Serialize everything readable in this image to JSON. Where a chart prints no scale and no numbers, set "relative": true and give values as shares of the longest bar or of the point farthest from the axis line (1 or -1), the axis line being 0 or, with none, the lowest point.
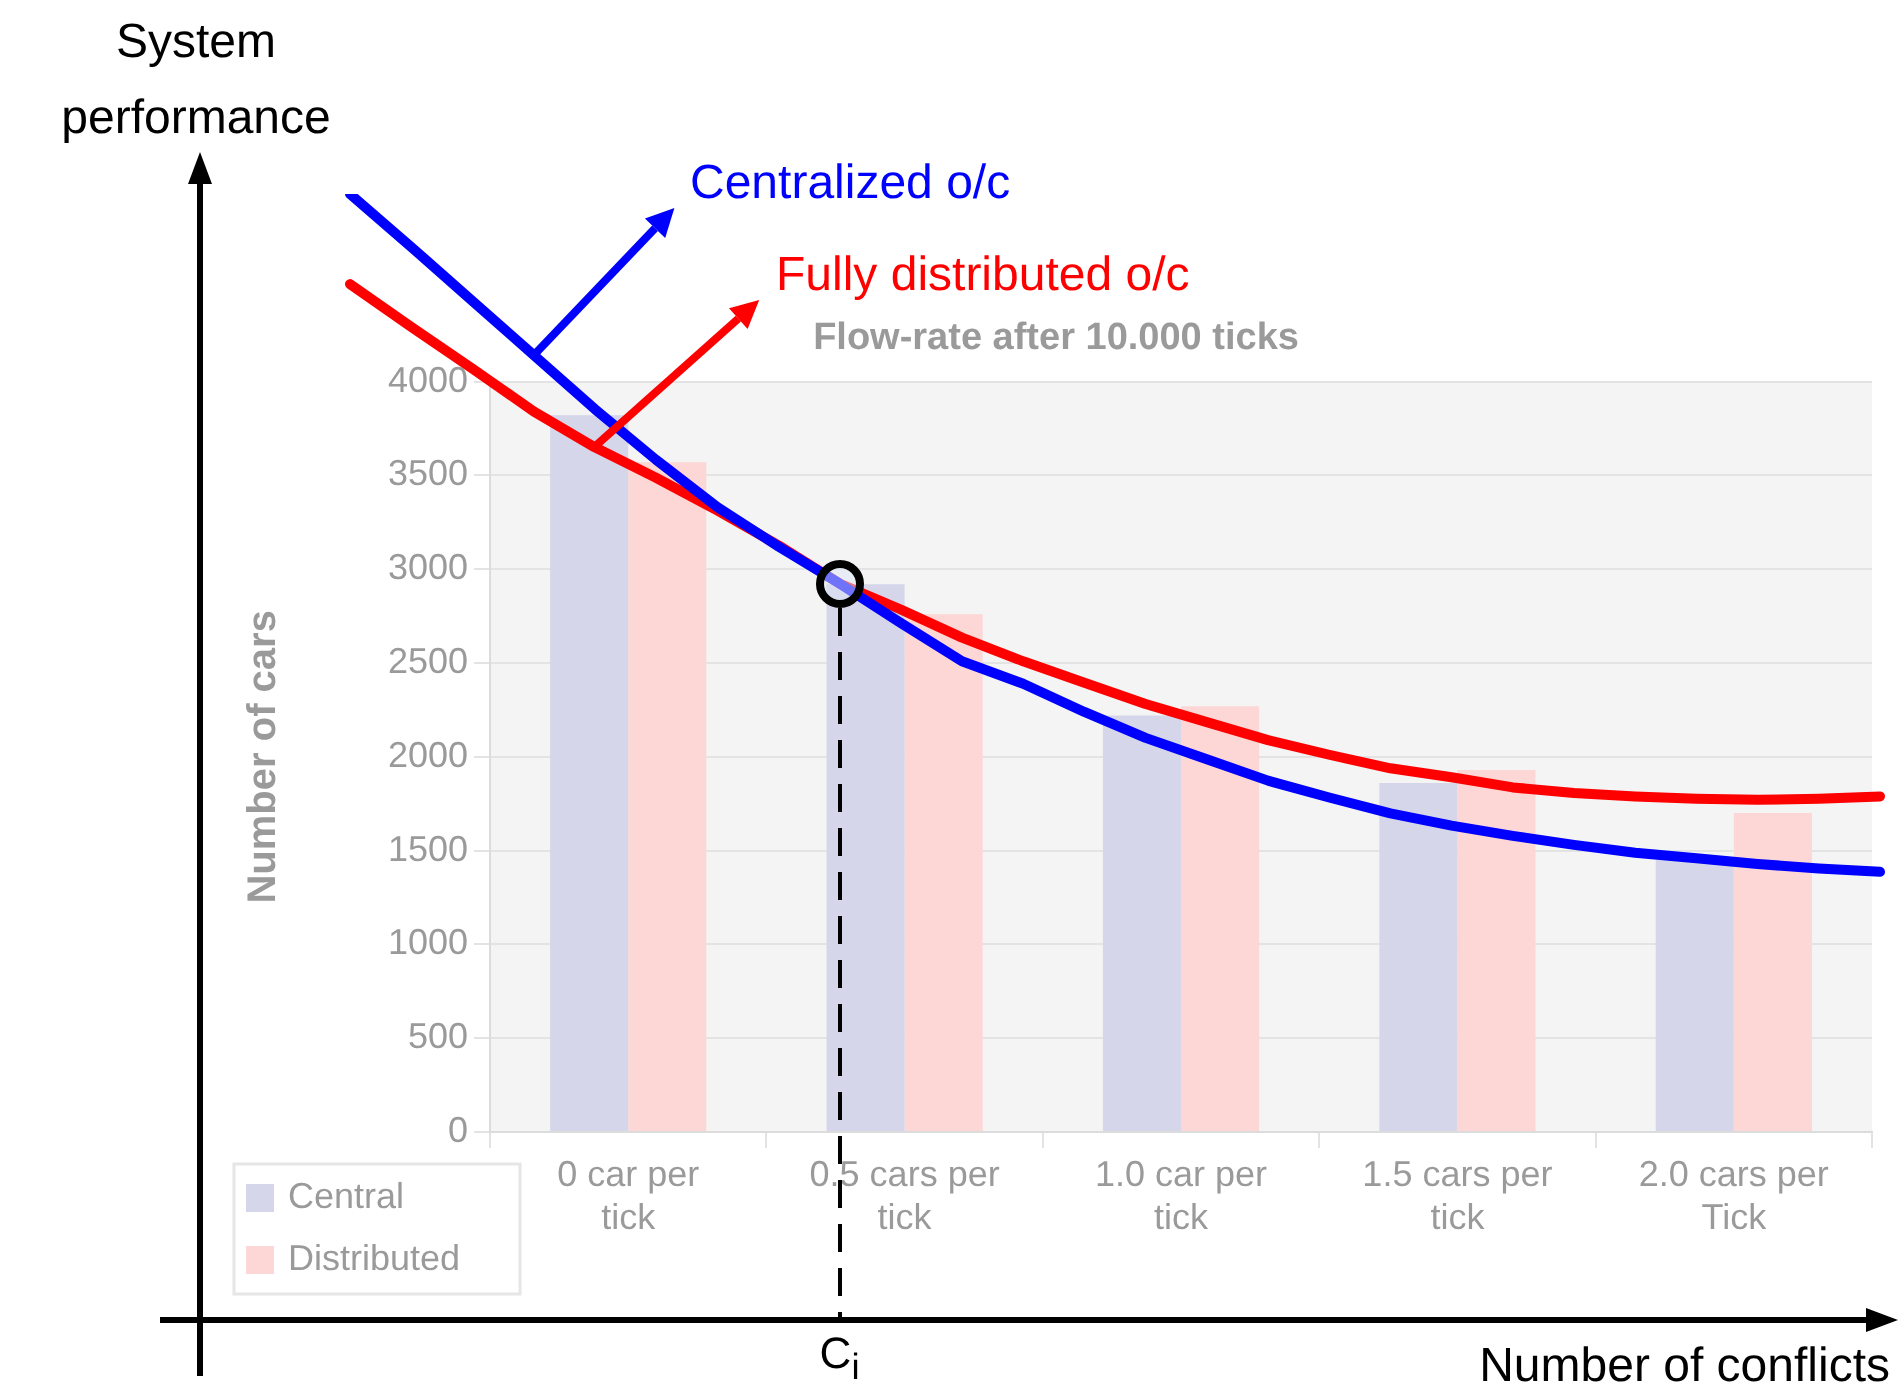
{
  "chart_data": [
    {
      "type": "line",
      "relative": true,
      "xlabel": "Number of conflicts",
      "ylabel": "System performance",
      "categories": [
        null,
        null,
        null,
        null,
        null,
        null,
        null,
        null,
        null,
        null,
        null,
        null,
        null,
        null,
        null,
        null,
        null,
        null,
        null,
        null,
        null,
        null,
        null,
        null,
        null,
        null
      ],
      "series": [
        {
          "name": "Centralized o/c",
          "color": "#0000ff",
          "values": [
            1,
            0.953,
            0.905,
            0.857,
            0.809,
            0.764,
            0.722,
            0.687,
            0.654,
            0.619,
            0.585,
            0.565,
            0.54,
            0.517,
            0.498,
            0.479,
            0.464,
            0.45,
            0.439,
            0.43,
            0.422,
            0.415,
            0.41,
            0.405,
            0.401,
            0.398
          ]
        },
        {
          "name": "Fully distributed o/c",
          "color": "#ff0000",
          "values": [
            0.92,
            0.882,
            0.845,
            0.807,
            0.775,
            0.748,
            0.719,
            0.688,
            0.654,
            0.631,
            0.606,
            0.585,
            0.566,
            0.547,
            0.531,
            0.515,
            0.502,
            0.49,
            0.482,
            0.473,
            0.468,
            0.465,
            0.463,
            0.462,
            0.463,
            0.465
          ]
        }
      ],
      "annotations": [
        "C$_{i}$"
      ]
    },
    {
      "type": "bar",
      "title": "Flow-rate after 10.000 ticks",
      "ylabel": "Number of cars",
      "categories": [
        "0 car per tick",
        "0.5 cars per tick",
        "1.0 car per tick",
        "1.5 cars per tick",
        "2.0 cars per Tick"
      ],
      "series": [
        {
          "name": "Central",
          "color": "#d5d6ea",
          "values": [
            3820,
            2920,
            2220,
            1860,
            1450
          ]
        },
        {
          "name": "Distributed",
          "color": "#fdd6d6",
          "values": [
            3570,
            2760,
            2270,
            1930,
            1700
          ]
        }
      ],
      "ylim": [
        0,
        4000
      ],
      "yticks": [
        0,
        500,
        1000,
        1500,
        2000,
        2500,
        3000,
        3500,
        4000
      ],
      "grid": "y",
      "legend": "bottom left"
    }
  ]
}
